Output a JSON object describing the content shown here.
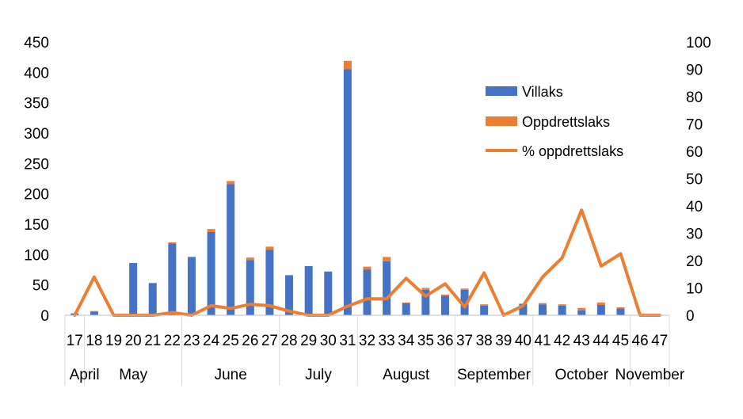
{
  "chart_data": {
    "type": "bar",
    "weeks": [
      "17",
      "18",
      "19",
      "20",
      "21",
      "22",
      "23",
      "24",
      "25",
      "26",
      "27",
      "28",
      "29",
      "30",
      "31",
      "32",
      "33",
      "34",
      "35",
      "36",
      "37",
      "38",
      "39",
      "40",
      "41",
      "42",
      "43",
      "44",
      "45",
      "46",
      "47"
    ],
    "months": [
      {
        "label": "April",
        "from": "17",
        "to": "18"
      },
      {
        "label": "May",
        "from": "18",
        "to": "22"
      },
      {
        "label": "June",
        "from": "23",
        "to": "27"
      },
      {
        "label": "July",
        "from": "28",
        "to": "31"
      },
      {
        "label": "August",
        "from": "32",
        "to": "36"
      },
      {
        "label": "September",
        "from": "37",
        "to": "40"
      },
      {
        "label": "October",
        "from": "41",
        "to": "45"
      },
      {
        "label": "November",
        "from": "46",
        "to": "47"
      }
    ],
    "series": [
      {
        "name": "Villaks",
        "kind": "bar",
        "color": "#4472C4",
        "values": [
          3,
          6,
          0,
          86,
          53,
          118,
          96,
          137,
          216,
          91,
          108,
          66,
          81,
          72,
          405,
          75,
          89,
          20,
          42,
          32,
          42,
          16,
          0,
          19,
          18,
          16,
          8,
          17,
          11,
          0,
          0
        ]
      },
      {
        "name": "Oppdrettslaks",
        "kind": "bar",
        "color": "#ED7D31",
        "values": [
          0,
          1,
          0,
          0,
          0,
          2,
          0,
          5,
          5,
          4,
          5,
          0,
          0,
          0,
          14,
          5,
          7,
          1,
          3,
          2,
          2,
          2,
          0,
          0,
          2,
          2,
          4,
          4,
          2,
          0,
          0
        ]
      },
      {
        "name": "% oppdrettslaks",
        "kind": "line",
        "axis": "right",
        "color": "#ED7D31",
        "values": [
          0,
          14,
          0,
          0,
          0,
          1,
          0,
          3.5,
          2.5,
          4,
          3.5,
          1.5,
          0,
          0,
          3.3,
          6,
          6,
          13.5,
          7,
          11.5,
          3,
          15.5,
          0,
          3.5,
          14,
          21,
          38.5,
          18,
          22.5,
          0,
          0
        ]
      }
    ],
    "y_left": {
      "min": 0,
      "max": 450,
      "ticks": [
        "0",
        "50",
        "100",
        "150",
        "200",
        "250",
        "300",
        "350",
        "400",
        "450"
      ]
    },
    "y_right": {
      "min": 0,
      "max": 100,
      "ticks": [
        "0",
        "10",
        "20",
        "30",
        "40",
        "50",
        "60",
        "70",
        "80",
        "90",
        "100"
      ]
    },
    "legend_position": "right",
    "grid": false
  }
}
